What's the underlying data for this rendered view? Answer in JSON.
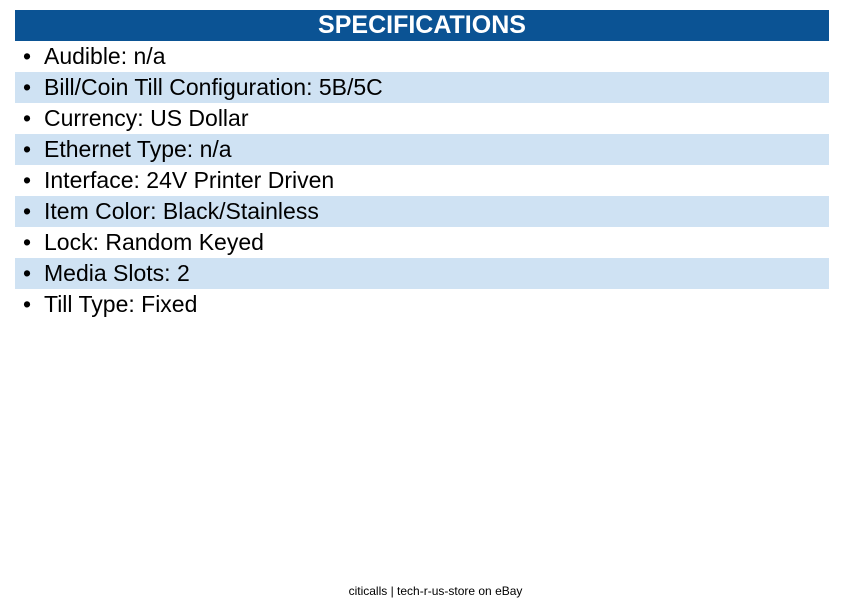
{
  "header": {
    "title": "SPECIFICATIONS"
  },
  "specs": [
    "Audible: n/a",
    "Bill/Coin Till Configuration: 5B/5C",
    "Currency: US Dollar",
    "Ethernet Type: n/a",
    "Interface: 24V Printer Driven",
    "Item Color: Black/Stainless",
    "Lock: Random Keyed",
    "Media Slots: 2",
    "Till Type: Fixed"
  ],
  "footer": "citicalls | tech-r-us-store on eBay"
}
